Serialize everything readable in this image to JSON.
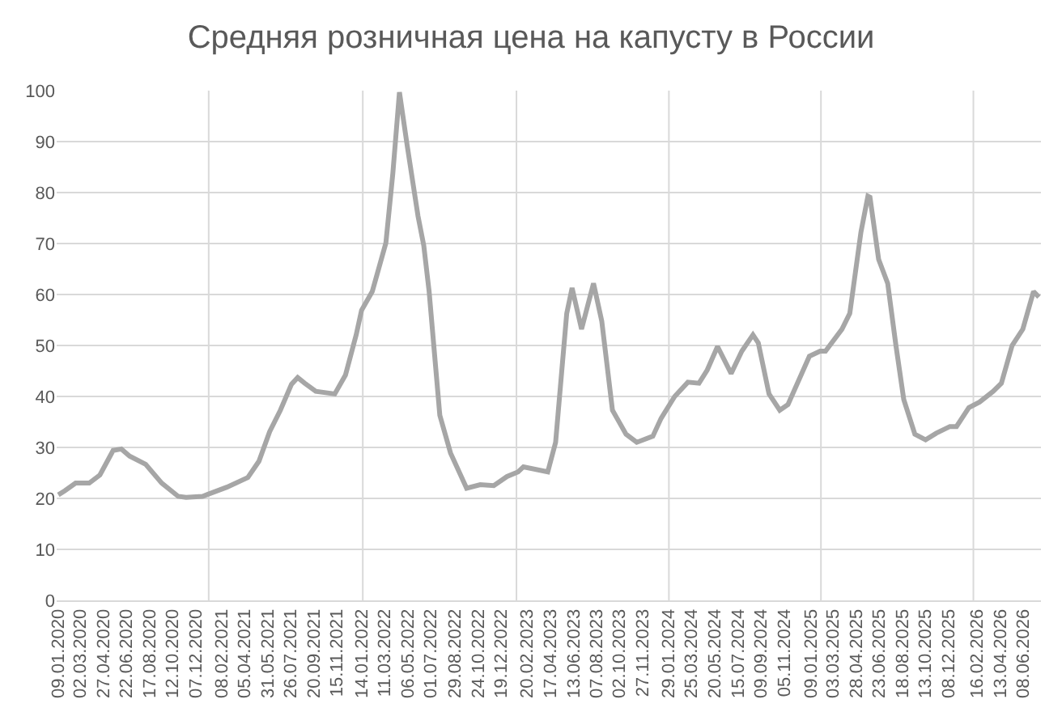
{
  "chart_data": {
    "type": "line",
    "title": "Средняя розничная цена на капусту в России",
    "x": [
      "2020-01-09",
      "2020-01-25",
      "2020-02-20",
      "2020-03-24",
      "2020-04-19",
      "2020-05-21",
      "2020-06-10",
      "2020-06-30",
      "2020-08-08",
      "2020-09-16",
      "2020-10-26",
      "2020-11-14",
      "2020-12-24",
      "2021-02-21",
      "2021-04-13",
      "2021-05-10",
      "2021-06-05",
      "2021-07-01",
      "2021-07-28",
      "2021-08-12",
      "2021-08-29",
      "2021-09-25",
      "2021-11-10",
      "2021-12-06",
      "2022-01-01",
      "2022-01-14",
      "2022-02-09",
      "2022-03-14",
      "2022-03-31",
      "2022-04-16",
      "2022-05-05",
      "2022-05-31",
      "2022-06-14",
      "2022-06-27",
      "2022-07-23",
      "2022-08-18",
      "2022-09-26",
      "2022-10-29",
      "2022-12-01",
      "2023-01-02",
      "2023-01-29",
      "2023-02-11",
      "2023-04-11",
      "2023-04-30",
      "2023-05-27",
      "2023-06-09",
      "2023-07-02",
      "2023-07-31",
      "2023-08-20",
      "2023-09-15",
      "2023-10-18",
      "2023-11-13",
      "2023-12-22",
      "2024-01-11",
      "2024-02-13",
      "2024-03-16",
      "2024-04-12",
      "2024-05-02",
      "2024-05-27",
      "2024-06-29",
      "2024-07-25",
      "2024-08-21",
      "2024-09-03",
      "2024-09-29",
      "2024-10-25",
      "2024-11-14",
      "2025-01-05",
      "2025-01-31",
      "2025-02-13",
      "2025-03-25",
      "2025-04-13",
      "2025-05-10",
      "2025-05-27",
      "2025-06-01",
      "2025-06-22",
      "2025-07-14",
      "2025-08-03",
      "2025-08-22",
      "2025-09-18",
      "2025-10-14",
      "2025-11-09",
      "2025-12-12",
      "2025-12-28",
      "2026-01-27",
      "2026-02-22",
      "2026-03-27",
      "2026-04-16",
      "2026-05-12",
      "2026-06-07",
      "2026-07-03",
      "2026-07-16"
    ],
    "series": [
      {
        "color": "#a6a6a6",
        "values": [
          20.7,
          21.5,
          23,
          23,
          24.6,
          29.4,
          29.7,
          28.3,
          26.7,
          23,
          20.4,
          20.2,
          20.4,
          22.2,
          24.1,
          27.3,
          33.1,
          37.3,
          42.4,
          43.7,
          42.6,
          41,
          40.5,
          44.2,
          52.1,
          56.9,
          60.6,
          70.1,
          83.8,
          99.7,
          89.1,
          75.4,
          69.6,
          60.6,
          36.3,
          28.9,
          22,
          22.7,
          22.5,
          24.3,
          25.2,
          26.2,
          25.2,
          31,
          56.3,
          61.3,
          53.2,
          62.2,
          54.8,
          37.3,
          32.6,
          31,
          32.2,
          35.7,
          40,
          42.8,
          42.6,
          45.2,
          49.8,
          44.5,
          48.9,
          52.1,
          50.5,
          40.5,
          37.3,
          38.4,
          47.9,
          48.9,
          48.9,
          53.2,
          56.3,
          72.2,
          79.3,
          79.1,
          66.9,
          62.2,
          50,
          39.4,
          32.6,
          31.5,
          32.8,
          34.1,
          34.1,
          37.8,
          38.9,
          41,
          42.6,
          50,
          53.2,
          60.6,
          59.5
        ]
      }
    ],
    "xlim": [
      "2020-01-05",
      "2026-07-21"
    ],
    "xticks": [
      {
        "value": "2020-01-09",
        "label": "09.01.2020"
      },
      {
        "value": "2020-03-02",
        "label": "02.03.2020"
      },
      {
        "value": "2020-04-27",
        "label": "27.04.2020"
      },
      {
        "value": "2020-06-22",
        "label": "22.06.2020"
      },
      {
        "value": "2020-08-17",
        "label": "17.08.2020"
      },
      {
        "value": "2020-10-12",
        "label": "12.10.2020"
      },
      {
        "value": "2020-12-07",
        "label": "07.12.2020"
      },
      {
        "value": "2021-01-08",
        "label": null
      },
      {
        "value": "2021-02-08",
        "label": "08.02.2021"
      },
      {
        "value": "2021-04-05",
        "label": "05.04.2021"
      },
      {
        "value": "2021-05-31",
        "label": "31.05.2021"
      },
      {
        "value": "2021-07-26",
        "label": "26.07.2021"
      },
      {
        "value": "2021-09-20",
        "label": "20.09.2021"
      },
      {
        "value": "2021-11-15",
        "label": "15.11.2021"
      },
      {
        "value": "2022-01-14",
        "label": "14.01.2022"
      },
      {
        "value": "2022-01-17",
        "label": null
      },
      {
        "value": "2022-03-11",
        "label": "11.03.2022"
      },
      {
        "value": "2022-05-06",
        "label": "06.05.2022"
      },
      {
        "value": "2022-07-01",
        "label": "01.07.2022"
      },
      {
        "value": "2022-08-29",
        "label": "29.08.2022"
      },
      {
        "value": "2022-10-24",
        "label": "24.10.2022"
      },
      {
        "value": "2022-12-19",
        "label": "19.12.2022"
      },
      {
        "value": "2023-01-25",
        "label": null
      },
      {
        "value": "2023-02-20",
        "label": "20.02.2023"
      },
      {
        "value": "2023-04-17",
        "label": "17.04.2023"
      },
      {
        "value": "2023-06-13",
        "label": "13.06.2023"
      },
      {
        "value": "2023-08-07",
        "label": "07.08.2023"
      },
      {
        "value": "2023-10-02",
        "label": "02.10.2023"
      },
      {
        "value": "2023-11-27",
        "label": "27.11.2023"
      },
      {
        "value": "2024-01-29",
        "label": "29.01.2024"
      },
      {
        "value": "2024-01-30",
        "label": null
      },
      {
        "value": "2024-03-25",
        "label": "25.03.2024"
      },
      {
        "value": "2024-05-20",
        "label": "20.05.2024"
      },
      {
        "value": "2024-07-15",
        "label": "15.07.2024"
      },
      {
        "value": "2024-09-09",
        "label": "09.09.2024"
      },
      {
        "value": "2024-11-05",
        "label": "05.11.2024"
      },
      {
        "value": "2025-01-09",
        "label": "09.01.2025"
      },
      {
        "value": "2025-02-02",
        "label": null
      },
      {
        "value": "2025-03-03",
        "label": "03.03.2025"
      },
      {
        "value": "2025-04-28",
        "label": "28.04.2025"
      },
      {
        "value": "2025-06-23",
        "label": "23.06.2025"
      },
      {
        "value": "2025-08-18",
        "label": "18.08.2025"
      },
      {
        "value": "2025-10-13",
        "label": "13.10.2025"
      },
      {
        "value": "2025-12-08",
        "label": "08.12.2025"
      },
      {
        "value": "2026-02-07",
        "label": null
      },
      {
        "value": "2026-02-16",
        "label": "16.02.2026"
      },
      {
        "value": "2026-04-13",
        "label": "13.04.2026"
      },
      {
        "value": "2026-06-08",
        "label": "08.06.2026"
      }
    ],
    "ylim": [
      0,
      100
    ],
    "yticks": [
      0,
      10,
      20,
      30,
      40,
      50,
      60,
      70,
      80,
      90,
      100
    ],
    "grid": true,
    "line_style": "solid"
  }
}
